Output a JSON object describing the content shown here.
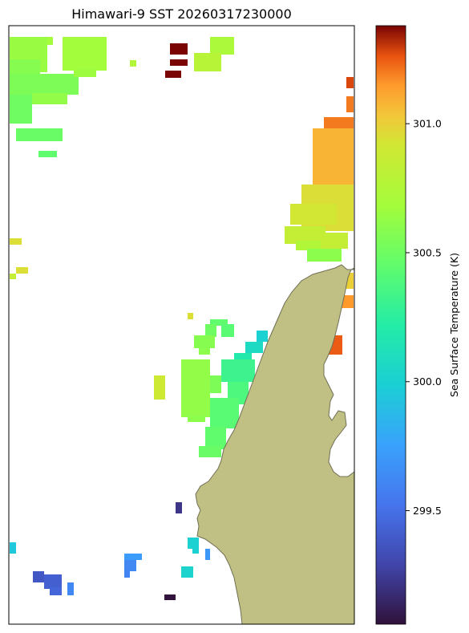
{
  "chart_data": {
    "type": "heatmap",
    "title": "Himawari-9 SST 20260317230000",
    "colorbar": {
      "label": "Sea Surface Temperature (K)",
      "range": [
        299.06,
        301.38
      ],
      "ticks": [
        299.5,
        300.0,
        300.5,
        301.0
      ],
      "tick_labels": [
        "299.5",
        "300.0",
        "300.5",
        "301.0"
      ],
      "colormap": "turbo"
    },
    "grid": false,
    "land_color": "#c0c084",
    "land_edge_color": "#6f6f55",
    "series": [
      {
        "patches": [
          {
            "x": [
              12,
              59
            ],
            "y": [
              46,
              90
            ],
            "value": 300.65
          },
          {
            "x": [
              59,
              66
            ],
            "y": [
              46,
              56
            ],
            "value": 300.68
          },
          {
            "x": [
              12,
              50
            ],
            "y": [
              74,
              96
            ],
            "value": 300.58
          },
          {
            "x": [
              12,
              98
            ],
            "y": [
              92,
              118
            ],
            "value": 300.55
          },
          {
            "x": [
              78,
              133
            ],
            "y": [
              46,
              88
            ],
            "value": 300.68
          },
          {
            "x": [
              92,
              120
            ],
            "y": [
              86,
              96
            ],
            "value": 300.66
          },
          {
            "x": [
              40,
              84
            ],
            "y": [
              116,
              130
            ],
            "value": 300.62
          },
          {
            "x": [
              12,
              40
            ],
            "y": [
              118,
              154
            ],
            "value": 300.5
          },
          {
            "x": [
              20,
              78
            ],
            "y": [
              160,
              176
            ],
            "value": 300.48
          },
          {
            "x": [
              48,
              71
            ],
            "y": [
              188,
              196
            ],
            "value": 300.45
          },
          {
            "x": [
              162,
              170
            ],
            "y": [
              75,
              83
            ],
            "value": 300.75
          },
          {
            "x": [
              262,
              292
            ],
            "y": [
              46,
              68
            ],
            "value": 300.72
          },
          {
            "x": [
              242,
              276
            ],
            "y": [
              66,
              89
            ],
            "value": 300.78
          }
        ]
      },
      {
        "patches": [
          {
            "x": [
              212,
              234
            ],
            "y": [
              54,
              68
            ],
            "value": 301.38
          },
          {
            "x": [
              212,
              234
            ],
            "y": [
              74,
              82
            ],
            "value": 301.38
          },
          {
            "x": [
              206,
              226
            ],
            "y": [
              88,
              97
            ],
            "value": 301.38
          }
        ]
      },
      {
        "patches": [
          {
            "x": [
              404,
              441
            ],
            "y": [
              146,
              206
            ],
            "value": 301.2
          },
          {
            "x": [
              390,
              441
            ],
            "y": [
              160,
              240
            ],
            "value": 301.08
          },
          {
            "x": [
              376,
              441
            ],
            "y": [
              230,
              288
            ],
            "value": 300.95
          },
          {
            "x": [
              362,
              420
            ],
            "y": [
              254,
              280
            ],
            "value": 300.92
          },
          {
            "x": [
              355,
              406
            ],
            "y": [
              282,
              304
            ],
            "value": 300.85
          },
          {
            "x": [
              369,
              400
            ],
            "y": [
              300,
              312
            ],
            "value": 300.75
          },
          {
            "x": [
              400,
              434
            ],
            "y": [
              290,
              310
            ],
            "value": 300.85
          },
          {
            "x": [
              383,
              426
            ],
            "y": [
              310,
              326
            ],
            "value": 300.6
          },
          {
            "x": [
              432,
              441
            ],
            "y": [
              120,
              140
            ],
            "value": 301.2
          },
          {
            "x": [
              432,
              441
            ],
            "y": [
              96,
              110
            ],
            "value": 301.28
          },
          {
            "x": [
              432,
              441
            ],
            "y": [
              340,
              360
            ],
            "value": 301.0
          },
          {
            "x": [
              426,
              441
            ],
            "y": [
              368,
              384
            ],
            "value": 301.15
          },
          {
            "x": [
              410,
              427
            ],
            "y": [
              418,
              442
            ],
            "value": 301.25
          }
        ]
      },
      {
        "patches": [
          {
            "x": [
              12,
              27
            ],
            "y": [
              297,
              305
            ],
            "value": 300.95
          },
          {
            "x": [
              20,
              35
            ],
            "y": [
              333,
              341
            ],
            "value": 300.95
          },
          {
            "x": [
              12,
              20
            ],
            "y": [
              341,
              348
            ],
            "value": 300.85
          },
          {
            "x": [
              234,
              241
            ],
            "y": [
              390,
              398
            ],
            "value": 300.95
          },
          {
            "x": [
              192,
              206
            ],
            "y": [
              468,
              498
            ],
            "value": 300.9
          }
        ]
      },
      {
        "patches": [
          {
            "x": [
              262,
              284
            ],
            "y": [
              398,
              406
            ],
            "value": 300.45
          },
          {
            "x": [
              256,
              270
            ],
            "y": [
              404,
              420
            ],
            "value": 300.5
          },
          {
            "x": [
              242,
              268
            ],
            "y": [
              418,
              434
            ],
            "value": 300.58
          },
          {
            "x": [
              248,
              262
            ],
            "y": [
              434,
              442
            ],
            "value": 300.6
          },
          {
            "x": [
              276,
              292
            ],
            "y": [
              404,
              420
            ],
            "value": 300.42
          },
          {
            "x": [
              226,
              262
            ],
            "y": [
              448,
              520
            ],
            "value": 300.62
          },
          {
            "x": [
              234,
              256
            ],
            "y": [
              518,
              526
            ],
            "value": 300.6
          },
          {
            "x": [
              262,
              276
            ],
            "y": [
              468,
              490
            ],
            "value": 300.55
          }
        ]
      },
      {
        "patches": [
          {
            "x": [
              320,
              334
            ],
            "y": [
              412,
              426
            ],
            "value": 300.0
          },
          {
            "x": [
              306,
              328
            ],
            "y": [
              426,
              440
            ],
            "value": 300.08
          },
          {
            "x": [
              292,
              314
            ],
            "y": [
              440,
              454
            ],
            "value": 300.2
          },
          {
            "x": [
              276,
              318
            ],
            "y": [
              448,
              476
            ],
            "value": 300.32
          },
          {
            "x": [
              284,
              310
            ],
            "y": [
              476,
              504
            ],
            "value": 300.38
          },
          {
            "x": [
              262,
              298
            ],
            "y": [
              496,
              534
            ],
            "value": 300.42
          },
          {
            "x": [
              256,
              282
            ],
            "y": [
              532,
              560
            ],
            "value": 300.45
          },
          {
            "x": [
              248,
              276
            ],
            "y": [
              556,
              570
            ],
            "value": 300.48
          }
        ]
      },
      {
        "patches": [
          {
            "x": [
              219,
              227
            ],
            "y": [
              626,
              640
            ],
            "value": 299.22
          },
          {
            "x": [
              12,
              20
            ],
            "y": [
              676,
              690
            ],
            "value": 299.95
          },
          {
            "x": [
              234,
              248
            ],
            "y": [
              670,
              684
            ],
            "value": 300.0
          },
          {
            "x": [
              240,
              248
            ],
            "y": [
              684,
              690
            ],
            "value": 300.0
          },
          {
            "x": [
              226,
              241
            ],
            "y": [
              706,
              720
            ],
            "value": 300.02
          },
          {
            "x": [
              256,
              262
            ],
            "y": [
              684,
              698
            ],
            "value": 299.7
          },
          {
            "x": [
              155,
              177
            ],
            "y": [
              690,
              698
            ],
            "value": 299.72
          },
          {
            "x": [
              155,
              170
            ],
            "y": [
              698,
              712
            ],
            "value": 299.62
          },
          {
            "x": [
              155,
              162
            ],
            "y": [
              710,
              720
            ],
            "value": 299.6
          },
          {
            "x": [
              41,
              55
            ],
            "y": [
              712,
              726
            ],
            "value": 299.38
          },
          {
            "x": [
              55,
              77
            ],
            "y": [
              716,
              734
            ],
            "value": 299.42
          },
          {
            "x": [
              62,
              77
            ],
            "y": [
              732,
              742
            ],
            "value": 299.45
          },
          {
            "x": [
              84,
              92
            ],
            "y": [
              726,
              742
            ],
            "value": 299.62
          },
          {
            "x": [
              205,
              219
            ],
            "y": [
              741,
              748
            ],
            "value": 299.06
          }
        ]
      }
    ]
  }
}
